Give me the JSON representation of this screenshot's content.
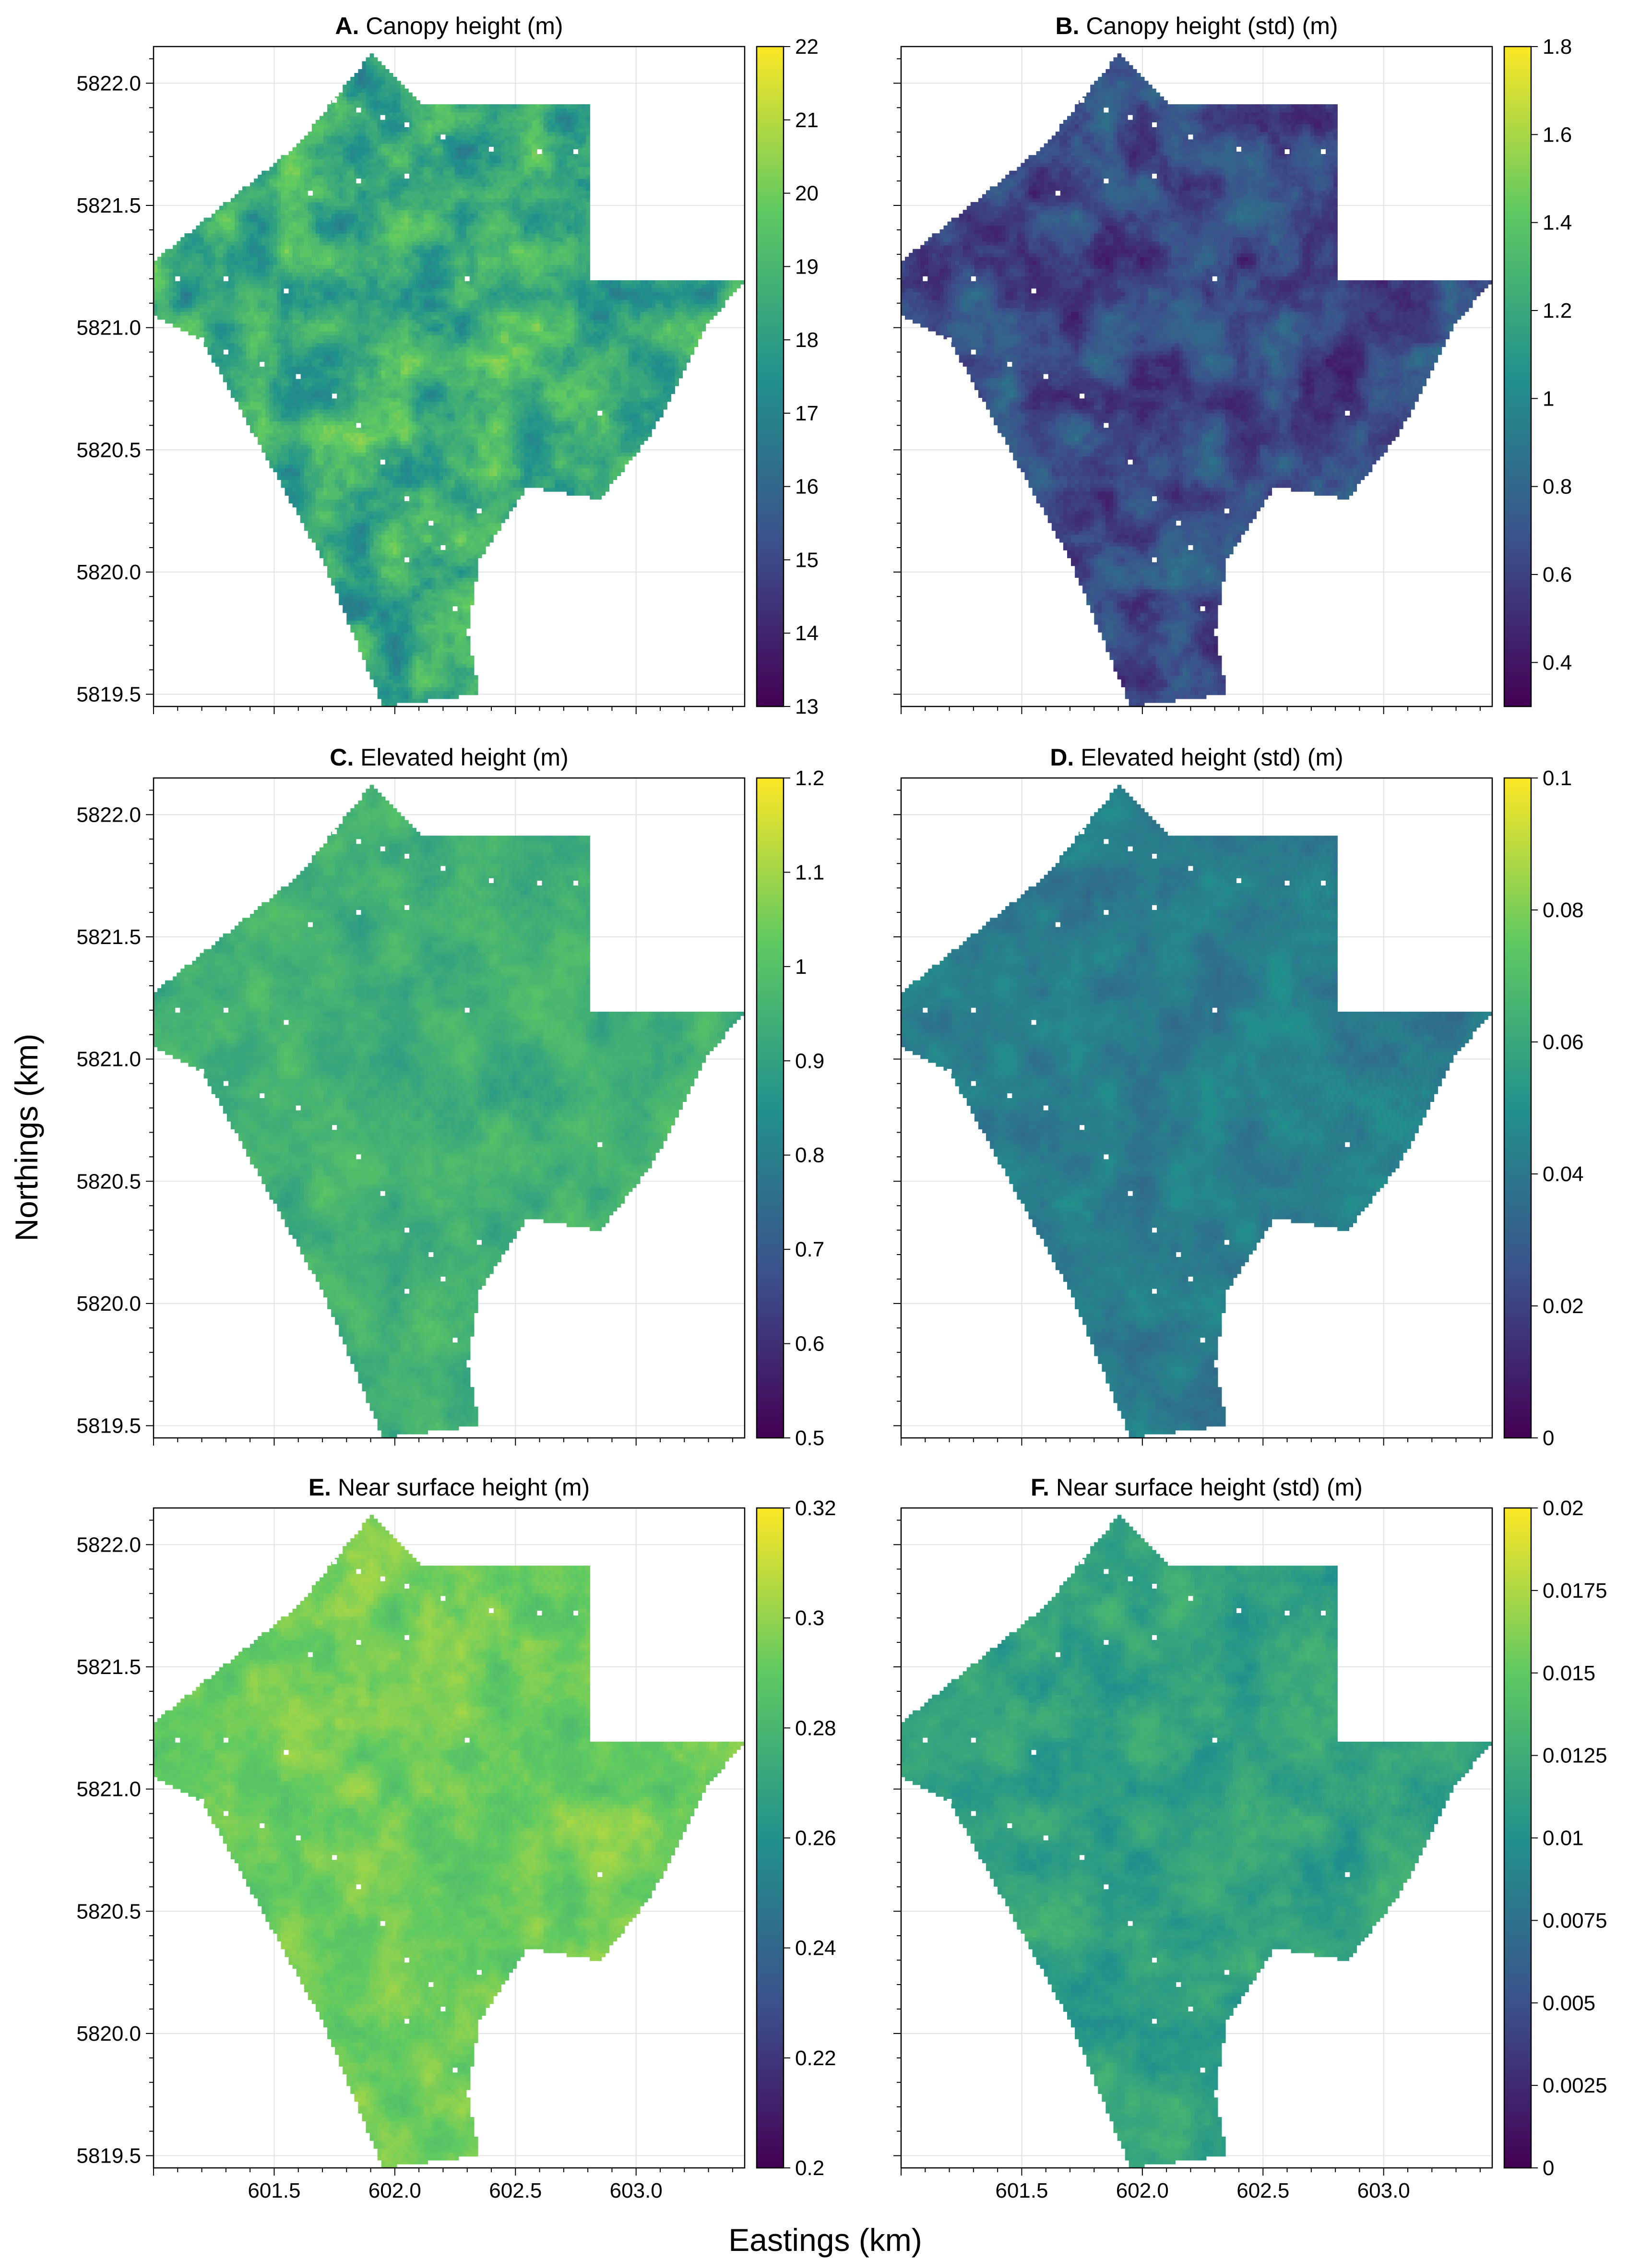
{
  "figure": {
    "xlabel": "Eastings (km)",
    "ylabel": "Northings (km)",
    "x_ticks": [
      "601.5",
      "602.0",
      "602.5",
      "603.0"
    ],
    "y_ticks": [
      "5822.0",
      "5821.5",
      "5821.0",
      "5820.5",
      "5820.0",
      "5819.5"
    ],
    "colormap": "viridis",
    "colormap_stops": [
      "#440154",
      "#3b528b",
      "#21918c",
      "#5ec962",
      "#fde725"
    ],
    "study_area_boundary_km": [
      [
        601.9,
        5822.12
      ],
      [
        602.1,
        5821.92
      ],
      [
        602.8,
        5821.92
      ],
      [
        602.8,
        5821.19
      ],
      [
        603.45,
        5821.19
      ],
      [
        603.3,
        5821.02
      ],
      [
        603.15,
        5820.72
      ],
      [
        603.05,
        5820.55
      ],
      [
        602.85,
        5820.3
      ],
      [
        602.55,
        5820.35
      ],
      [
        602.35,
        5820.05
      ],
      [
        602.3,
        5819.75
      ],
      [
        602.35,
        5819.5
      ],
      [
        601.95,
        5819.45
      ],
      [
        601.7,
        5820.05
      ],
      [
        601.45,
        5820.5
      ],
      [
        601.2,
        5820.95
      ],
      [
        601.0,
        5821.05
      ],
      [
        601.0,
        5821.27
      ],
      [
        601.35,
        5821.55
      ],
      [
        601.6,
        5821.75
      ]
    ],
    "plot_markers_km": [
      [
        601.75,
        5821.93
      ],
      [
        601.85,
        5821.89
      ],
      [
        601.95,
        5821.86
      ],
      [
        602.05,
        5821.83
      ],
      [
        602.2,
        5821.78
      ],
      [
        602.4,
        5821.73
      ],
      [
        602.6,
        5821.72
      ],
      [
        602.75,
        5821.72
      ],
      [
        601.65,
        5821.55
      ],
      [
        601.85,
        5821.6
      ],
      [
        602.05,
        5821.62
      ],
      [
        601.1,
        5821.2
      ],
      [
        601.3,
        5821.2
      ],
      [
        601.55,
        5821.15
      ],
      [
        602.3,
        5821.2
      ],
      [
        601.1,
        5820.98
      ],
      [
        601.2,
        5820.95
      ],
      [
        601.3,
        5820.9
      ],
      [
        601.45,
        5820.85
      ],
      [
        601.6,
        5820.8
      ],
      [
        601.75,
        5820.72
      ],
      [
        601.85,
        5820.6
      ],
      [
        601.95,
        5820.45
      ],
      [
        602.05,
        5820.3
      ],
      [
        602.15,
        5820.2
      ],
      [
        602.2,
        5820.1
      ],
      [
        602.05,
        5820.05
      ],
      [
        602.25,
        5819.85
      ],
      [
        602.35,
        5820.25
      ],
      [
        602.45,
        5820.15
      ],
      [
        602.55,
        5820.3
      ],
      [
        602.85,
        5820.65
      ],
      [
        603.05,
        5820.3
      ],
      [
        603.3,
        5820.85
      ]
    ]
  },
  "panels": [
    {
      "letter": "A.",
      "title": "Canopy height (m)",
      "cbar_ticks": [
        "22",
        "21",
        "20",
        "19",
        "18",
        "17",
        "16",
        "15",
        "14",
        "13"
      ]
    },
    {
      "letter": "B.",
      "title": "Canopy height (std) (m)",
      "cbar_ticks": [
        "1.8",
        "1.6",
        "1.4",
        "1.2",
        "1",
        "0.8",
        "0.6",
        "0.4"
      ]
    },
    {
      "letter": "C.",
      "title": "Elevated height (m)",
      "cbar_ticks": [
        "1.2",
        "1.1",
        "1",
        "0.9",
        "0.8",
        "0.7",
        "0.6",
        "0.5"
      ]
    },
    {
      "letter": "D.",
      "title": "Elevated height (std) (m)",
      "cbar_ticks": [
        "0.1",
        "0.08",
        "0.06",
        "0.04",
        "0.02",
        "0"
      ]
    },
    {
      "letter": "E.",
      "title": "Near surface height (m)",
      "cbar_ticks": [
        "0.32",
        "0.3",
        "0.28",
        "0.26",
        "0.24",
        "0.22",
        "0.2"
      ]
    },
    {
      "letter": "F.",
      "title": "Near surface height (std) (m)",
      "cbar_ticks": [
        "0.02",
        "0.0175",
        "0.015",
        "0.0125",
        "0.01",
        "0.0075",
        "0.005",
        "0.0025",
        "0"
      ]
    }
  ],
  "chart_data": [
    {
      "type": "heatmap",
      "title": "Canopy height (m)",
      "colormap": "viridis",
      "clim": [
        13,
        22
      ],
      "mean_level": 18.5,
      "level_spread": 1.7,
      "xlim": [
        601.0,
        603.45
      ],
      "ylim": [
        5819.45,
        5822.15
      ],
      "xlabel": "Eastings (km)",
      "ylabel": "Northings (km)"
    },
    {
      "type": "heatmap",
      "title": "Canopy height (std) (m)",
      "colormap": "viridis",
      "clim": [
        0.3,
        1.8
      ],
      "mean_level": 0.65,
      "level_spread": 0.22,
      "xlim": [
        601.0,
        603.45
      ],
      "ylim": [
        5819.45,
        5822.15
      ],
      "xlabel": "Eastings (km)",
      "ylabel": "Northings (km)"
    },
    {
      "type": "heatmap",
      "title": "Elevated height (m)",
      "colormap": "viridis",
      "clim": [
        0.5,
        1.2
      ],
      "mean_level": 0.95,
      "level_spread": 0.06,
      "xlim": [
        601.0,
        603.45
      ],
      "ylim": [
        5819.45,
        5822.15
      ],
      "xlabel": "Eastings (km)",
      "ylabel": "Northings (km)"
    },
    {
      "type": "heatmap",
      "title": "Elevated height (std) (m)",
      "colormap": "viridis",
      "clim": [
        0,
        0.1
      ],
      "mean_level": 0.042,
      "level_spread": 0.008,
      "xlim": [
        601.0,
        603.45
      ],
      "ylim": [
        5819.45,
        5822.15
      ],
      "xlabel": "Eastings (km)",
      "ylabel": "Northings (km)"
    },
    {
      "type": "heatmap",
      "title": "Near surface height (m)",
      "colormap": "viridis",
      "clim": [
        0.2,
        0.32
      ],
      "mean_level": 0.293,
      "level_spread": 0.01,
      "xlim": [
        601.0,
        603.45
      ],
      "ylim": [
        5819.45,
        5822.15
      ],
      "xlabel": "Eastings (km)",
      "ylabel": "Northings (km)"
    },
    {
      "type": "heatmap",
      "title": "Near surface height (std) (m)",
      "colormap": "viridis",
      "clim": [
        0,
        0.02
      ],
      "mean_level": 0.0115,
      "level_spread": 0.0018,
      "xlim": [
        601.0,
        603.45
      ],
      "ylim": [
        5819.45,
        5822.15
      ],
      "xlabel": "Eastings (km)",
      "ylabel": "Northings (km)"
    }
  ]
}
